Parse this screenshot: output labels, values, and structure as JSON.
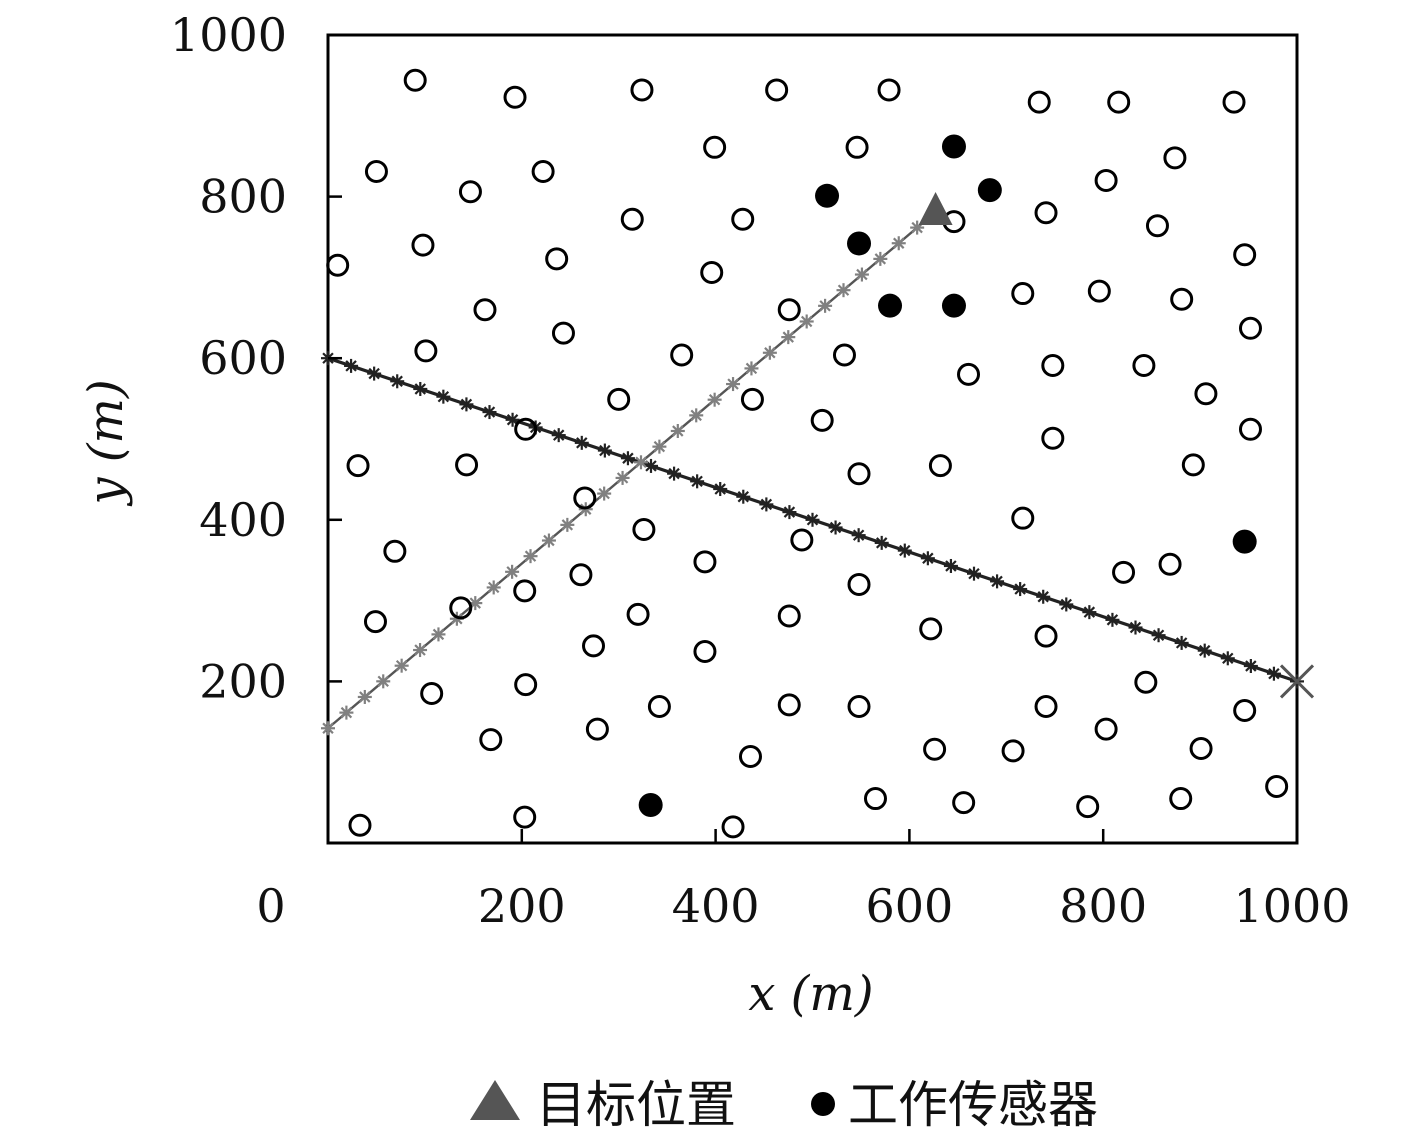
{
  "chart_data": {
    "type": "scatter",
    "xlabel": "x (m)",
    "ylabel": "y (m)",
    "xlim": [
      0,
      1000
    ],
    "ylim": [
      0,
      1000
    ],
    "xticks": [
      "0",
      "200",
      "400",
      "600",
      "800",
      "1000"
    ],
    "yticks": [
      "200",
      "400",
      "600",
      "800",
      "1000"
    ],
    "grid": false,
    "legend_position": "bottom",
    "legend": [
      {
        "label": "目标位置",
        "marker": "triangle",
        "color": "#555555"
      },
      {
        "label": "工作传感器",
        "marker": "filled-circle",
        "color": "#000000"
      }
    ],
    "target": {
      "x": 627,
      "y": 781
    },
    "working_sensors": [
      [
        646,
        862
      ],
      [
        683,
        808
      ],
      [
        515,
        801
      ],
      [
        548,
        742
      ],
      [
        580,
        665
      ],
      [
        646,
        665
      ],
      [
        946,
        373
      ],
      [
        333,
        47
      ]
    ],
    "idle_sensors": [
      [
        90,
        944
      ],
      [
        193,
        923
      ],
      [
        324,
        932
      ],
      [
        463,
        932
      ],
      [
        579,
        932
      ],
      [
        734,
        917
      ],
      [
        816,
        917
      ],
      [
        935,
        917
      ],
      [
        50,
        831
      ],
      [
        147,
        806
      ],
      [
        222,
        831
      ],
      [
        399,
        861
      ],
      [
        546,
        861
      ],
      [
        874,
        848
      ],
      [
        803,
        820
      ],
      [
        856,
        764
      ],
      [
        314,
        772
      ],
      [
        428,
        772
      ],
      [
        741,
        780
      ],
      [
        646,
        769
      ],
      [
        98,
        740
      ],
      [
        236,
        723
      ],
      [
        396,
        706
      ],
      [
        946,
        728
      ],
      [
        10,
        715
      ],
      [
        162,
        660
      ],
      [
        243,
        631
      ],
      [
        476,
        660
      ],
      [
        717,
        680
      ],
      [
        796,
        683
      ],
      [
        881,
        673
      ],
      [
        952,
        637
      ],
      [
        101,
        609
      ],
      [
        365,
        604
      ],
      [
        533,
        604
      ],
      [
        661,
        580
      ],
      [
        748,
        591
      ],
      [
        842,
        591
      ],
      [
        906,
        556
      ],
      [
        300,
        549
      ],
      [
        438,
        549
      ],
      [
        510,
        523
      ],
      [
        204,
        512
      ],
      [
        952,
        512
      ],
      [
        31,
        467
      ],
      [
        143,
        468
      ],
      [
        548,
        457
      ],
      [
        632,
        467
      ],
      [
        748,
        501
      ],
      [
        893,
        468
      ],
      [
        265,
        427
      ],
      [
        326,
        388
      ],
      [
        717,
        402
      ],
      [
        69,
        361
      ],
      [
        489,
        375
      ],
      [
        389,
        348
      ],
      [
        261,
        332
      ],
      [
        821,
        335
      ],
      [
        869,
        345
      ],
      [
        203,
        312
      ],
      [
        548,
        320
      ],
      [
        137,
        291
      ],
      [
        49,
        274
      ],
      [
        320,
        283
      ],
      [
        476,
        281
      ],
      [
        622,
        265
      ],
      [
        741,
        256
      ],
      [
        274,
        244
      ],
      [
        389,
        237
      ],
      [
        107,
        185
      ],
      [
        204,
        196
      ],
      [
        342,
        169
      ],
      [
        476,
        171
      ],
      [
        548,
        169
      ],
      [
        741,
        169
      ],
      [
        844,
        199
      ],
      [
        946,
        164
      ],
      [
        168,
        128
      ],
      [
        278,
        141
      ],
      [
        436,
        107
      ],
      [
        626,
        116
      ],
      [
        707,
        114
      ],
      [
        803,
        141
      ],
      [
        901,
        117
      ],
      [
        565,
        55
      ],
      [
        656,
        50
      ],
      [
        784,
        45
      ],
      [
        880,
        55
      ],
      [
        979,
        70
      ],
      [
        33,
        22
      ],
      [
        203,
        32
      ],
      [
        418,
        20
      ]
    ],
    "series": [
      {
        "x": [
          0,
          1000
        ],
        "y": [
          600,
          200
        ],
        "color": "#222222",
        "marker": "asterisk"
      },
      {
        "x": [
          0,
          627
        ],
        "y": [
          142,
          781
        ],
        "color": "#808080",
        "marker": "asterisk"
      }
    ],
    "end_marker": {
      "x": 1000,
      "y": 200,
      "marker": "cross",
      "color": "#555555"
    }
  }
}
